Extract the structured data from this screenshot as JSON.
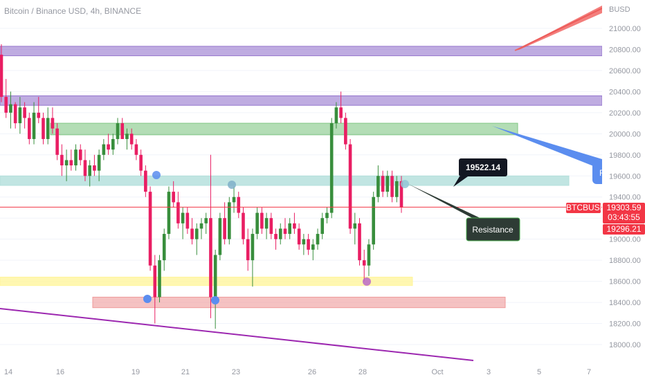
{
  "header": {
    "title": "Bitcoin / Binance USD, 4h, BINANCE"
  },
  "axis": {
    "currency": "BUSD"
  },
  "price_tags": {
    "symbol": "BTCBUSD",
    "last_price": "19303.59",
    "countdown": "03:43:55",
    "low_price": "19296.21"
  },
  "annotations": {
    "price_callout": "19522.14",
    "resistance": "Resistance",
    "cut_label": "R"
  },
  "colors": {
    "up": "#388e3c",
    "down": "#e91e63",
    "purple_zone": "#9575cd",
    "green_zone": "#81c784",
    "teal_zone": "#b2dfdb",
    "yellow_zone": "#fff59d",
    "red_zone": "#ef9a9a",
    "price_line": "#f23645",
    "trendline": "#9c27b0",
    "marker_blue": "#5b8def"
  },
  "chart_data": {
    "type": "candlestick",
    "symbol": "Bitcoin / Binance USD",
    "interval": "4h",
    "exchange": "BINANCE",
    "x_ticks": [
      "14",
      "16",
      "19",
      "21",
      "23",
      "26",
      "28",
      "Oct",
      "3",
      "5",
      "7"
    ],
    "y_ticks": [
      "21000.00",
      "20800.00",
      "20600.00",
      "20400.00",
      "20200.00",
      "20000.00",
      "19800.00",
      "19600.00",
      "19400.00",
      "19200.00",
      "19000.00",
      "18800.00",
      "18600.00",
      "18400.00",
      "18200.00",
      "18000.00"
    ],
    "ylim": [
      17850,
      21250
    ],
    "last_price": 19303.59,
    "price_callout": 19522.14,
    "zones": [
      {
        "name": "purple-upper",
        "low": 20740,
        "high": 20830,
        "color": "purple_zone"
      },
      {
        "name": "purple-lower",
        "low": 20270,
        "high": 20360,
        "color": "purple_zone"
      },
      {
        "name": "green-supply",
        "low": 19990,
        "high": 20100,
        "color": "green_zone"
      },
      {
        "name": "teal-resistance",
        "low": 19510,
        "high": 19600,
        "color": "teal_zone"
      },
      {
        "name": "yellow-support",
        "low": 18560,
        "high": 18640,
        "color": "yellow_zone"
      },
      {
        "name": "red-demand",
        "low": 18350,
        "high": 18450,
        "color": "red_zone"
      }
    ],
    "candles": [
      [
        20750,
        20850,
        20300,
        20350
      ],
      [
        20350,
        20520,
        20150,
        20200
      ],
      [
        20200,
        20400,
        20050,
        20280
      ],
      [
        20280,
        20300,
        20050,
        20100
      ],
      [
        20100,
        20350,
        20000,
        20250
      ],
      [
        20250,
        20300,
        20050,
        20150
      ],
      [
        20150,
        20200,
        19900,
        19950
      ],
      [
        19950,
        20300,
        19900,
        20200
      ],
      [
        20200,
        20350,
        20100,
        20150
      ],
      [
        20150,
        20200,
        19900,
        19950
      ],
      [
        19950,
        20250,
        19900,
        20150
      ],
      [
        20150,
        20250,
        20000,
        20050
      ],
      [
        20050,
        20100,
        19750,
        19800
      ],
      [
        19800,
        19900,
        19600,
        19700
      ],
      [
        19700,
        19850,
        19550,
        19750
      ],
      [
        19750,
        19850,
        19650,
        19700
      ],
      [
        19700,
        19900,
        19650,
        19850
      ],
      [
        19850,
        19900,
        19700,
        19750
      ],
      [
        19750,
        19850,
        19550,
        19600
      ],
      [
        19600,
        19750,
        19500,
        19700
      ],
      [
        19700,
        19800,
        19600,
        19650
      ],
      [
        19650,
        19850,
        19550,
        19800
      ],
      [
        19800,
        19950,
        19750,
        19900
      ],
      [
        19900,
        20000,
        19800,
        19850
      ],
      [
        19850,
        20000,
        19800,
        19950
      ],
      [
        19950,
        20150,
        19900,
        20100
      ],
      [
        20100,
        20150,
        19950,
        19950
      ],
      [
        19950,
        20050,
        19850,
        20000
      ],
      [
        20000,
        20050,
        19850,
        19900
      ],
      [
        19900,
        19950,
        19750,
        19800
      ],
      [
        19800,
        19850,
        19600,
        19650
      ],
      [
        19650,
        19700,
        19400,
        19450
      ],
      [
        19450,
        19500,
        18700,
        18750
      ],
      [
        18750,
        18850,
        18200,
        18450
      ],
      [
        18450,
        18850,
        18400,
        18800
      ],
      [
        18800,
        19100,
        18700,
        19050
      ],
      [
        19050,
        19500,
        19000,
        19450
      ],
      [
        19450,
        19550,
        19300,
        19350
      ],
      [
        19350,
        19450,
        19100,
        19150
      ],
      [
        19150,
        19300,
        19000,
        19250
      ],
      [
        19250,
        19300,
        19050,
        19100
      ],
      [
        19100,
        19200,
        18950,
        19000
      ],
      [
        19000,
        19150,
        18850,
        19100
      ],
      [
        19100,
        19200,
        19000,
        19150
      ],
      [
        19150,
        19250,
        19050,
        19200
      ],
      [
        19200,
        19800,
        18250,
        18450
      ],
      [
        18450,
        18900,
        18150,
        18850
      ],
      [
        18850,
        19250,
        18800,
        19200
      ],
      [
        19200,
        19350,
        18950,
        19000
      ],
      [
        19000,
        19400,
        18950,
        19350
      ],
      [
        19350,
        19500,
        19250,
        19400
      ],
      [
        19400,
        19450,
        19200,
        19250
      ],
      [
        19250,
        19300,
        18950,
        19000
      ],
      [
        19000,
        19100,
        18700,
        18800
      ],
      [
        18800,
        19100,
        18550,
        19050
      ],
      [
        19050,
        19300,
        19000,
        19250
      ],
      [
        19250,
        19300,
        19050,
        19100
      ],
      [
        19100,
        19250,
        19000,
        19200
      ],
      [
        19200,
        19250,
        19000,
        19050
      ],
      [
        19050,
        19100,
        18900,
        19000
      ],
      [
        19000,
        19150,
        18950,
        19100
      ],
      [
        19100,
        19200,
        19000,
        19050
      ],
      [
        19050,
        19200,
        19000,
        19150
      ],
      [
        19150,
        19250,
        19050,
        19100
      ],
      [
        19100,
        19150,
        18900,
        18950
      ],
      [
        18950,
        19050,
        18850,
        19000
      ],
      [
        19000,
        19050,
        18850,
        18900
      ],
      [
        18900,
        19000,
        18800,
        18950
      ],
      [
        18950,
        19100,
        18900,
        19050
      ],
      [
        19050,
        19250,
        19000,
        19200
      ],
      [
        19200,
        19300,
        19150,
        19250
      ],
      [
        19250,
        20150,
        19200,
        20100
      ],
      [
        20100,
        20300,
        20050,
        20250
      ],
      [
        20250,
        20400,
        20100,
        20150
      ],
      [
        20150,
        20200,
        19850,
        19900
      ],
      [
        19900,
        19950,
        19050,
        19100
      ],
      [
        19100,
        19250,
        18950,
        19150
      ],
      [
        19150,
        19200,
        18750,
        18800
      ],
      [
        18800,
        18900,
        18600,
        18750
      ],
      [
        18750,
        19000,
        18650,
        18950
      ],
      [
        18950,
        19450,
        18900,
        19400
      ],
      [
        19400,
        19700,
        19350,
        19600
      ],
      [
        19600,
        19650,
        19400,
        19450
      ],
      [
        19450,
        19650,
        19400,
        19600
      ],
      [
        19600,
        19650,
        19350,
        19400
      ],
      [
        19400,
        19600,
        19350,
        19550
      ],
      [
        19550,
        19600,
        19250,
        19300
      ]
    ]
  }
}
